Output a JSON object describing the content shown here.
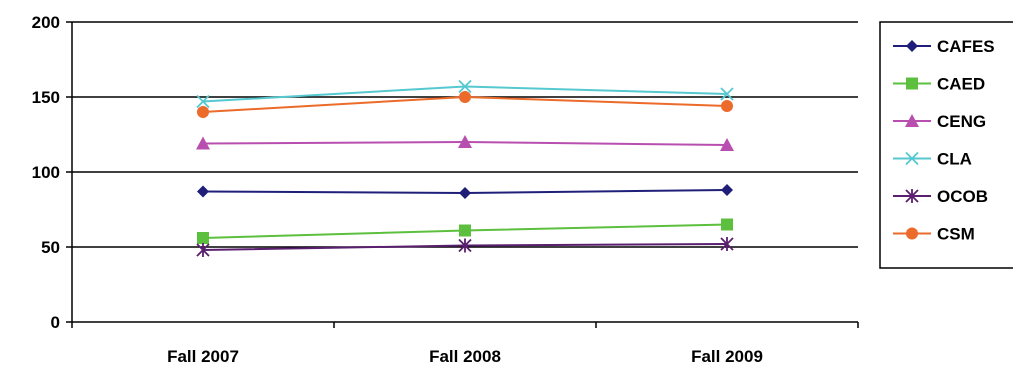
{
  "chart_data": {
    "type": "line",
    "title": "",
    "xlabel": "",
    "ylabel": "",
    "categories": [
      "Fall 2007",
      "Fall 2008",
      "Fall 2009"
    ],
    "ylim": [
      0,
      200
    ],
    "yticks": [
      0,
      50,
      100,
      150,
      200
    ],
    "grid": "horizontal",
    "legend_position": "right",
    "series": [
      {
        "name": "CAFES",
        "values": [
          87,
          86,
          88
        ],
        "color": "#1f1f7a",
        "marker": "diamond"
      },
      {
        "name": "CAED",
        "values": [
          56,
          61,
          65
        ],
        "color": "#5cbf3d",
        "marker": "square"
      },
      {
        "name": "CENG",
        "values": [
          119,
          120,
          118
        ],
        "color": "#b84fb0",
        "marker": "triangle"
      },
      {
        "name": "CLA",
        "values": [
          147,
          157,
          152
        ],
        "color": "#55c8d0",
        "marker": "x"
      },
      {
        "name": "OCOB",
        "values": [
          48,
          51,
          52
        ],
        "color": "#5a1f6e",
        "marker": "asterisk"
      },
      {
        "name": "CSM",
        "values": [
          140,
          150,
          144
        ],
        "color": "#ec6a2a",
        "marker": "circle"
      }
    ]
  }
}
